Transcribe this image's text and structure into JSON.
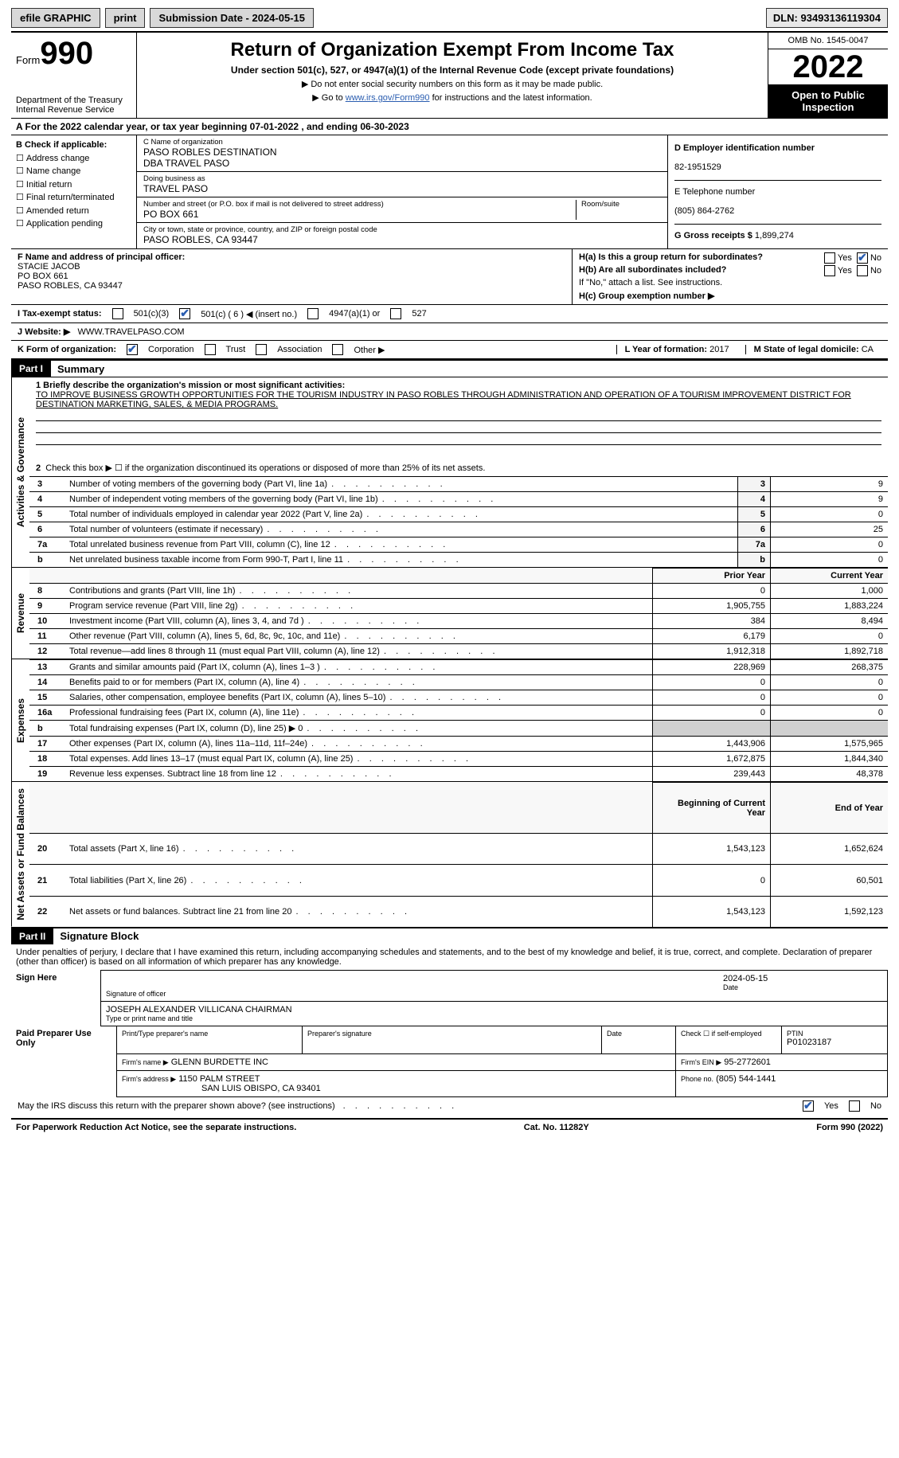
{
  "topbar": {
    "efile": "efile GRAPHIC",
    "print": "print",
    "submission_label": "Submission Date - 2024-05-15",
    "dln": "DLN: 93493136119304"
  },
  "header": {
    "form_label": "Form",
    "form_number": "990",
    "dept": "Department of the Treasury\nInternal Revenue Service",
    "title": "Return of Organization Exempt From Income Tax",
    "sub": "Under section 501(c), 527, or 4947(a)(1) of the Internal Revenue Code (except private foundations)",
    "note1": "▶ Do not enter social security numbers on this form as it may be made public.",
    "note2_pre": "▶ Go to ",
    "note2_link": "www.irs.gov/Form990",
    "note2_post": " for instructions and the latest information.",
    "omb": "OMB No. 1545-0047",
    "year": "2022",
    "open": "Open to Public Inspection"
  },
  "section_a": "A  For the 2022 calendar year, or tax year beginning 07-01-2022    , and ending 06-30-2023",
  "col_b": {
    "title": "B Check if applicable:",
    "items": [
      "Address change",
      "Name change",
      "Initial return",
      "Final return/terminated",
      "Amended return",
      "Application pending"
    ]
  },
  "col_c": {
    "name_label": "C Name of organization",
    "name": "PASO ROBLES DESTINATION\nDBA TRAVEL PASO",
    "dba_label": "Doing business as",
    "dba": "TRAVEL PASO",
    "street_label": "Number and street (or P.O. box if mail is not delivered to street address)",
    "room_label": "Room/suite",
    "street": "PO BOX 661",
    "city_label": "City or town, state or province, country, and ZIP or foreign postal code",
    "city": "PASO ROBLES, CA  93447"
  },
  "col_def": {
    "d_label": "D Employer identification number",
    "d_val": "82-1951529",
    "e_label": "E Telephone number",
    "e_val": "(805) 864-2762",
    "g_label": "G Gross receipts $",
    "g_val": "1,899,274"
  },
  "col_f": {
    "label": "F Name and address of principal officer:",
    "name": "STACIE JACOB",
    "addr1": "PO BOX 661",
    "addr2": "PASO ROBLES, CA  93447"
  },
  "col_h": {
    "ha": "H(a)  Is this a group return for subordinates?",
    "hb": "H(b)  Are all subordinates included?",
    "hb_note": "If \"No,\" attach a list. See instructions.",
    "hc": "H(c)  Group exemption number ▶",
    "yes": "Yes",
    "no": "No"
  },
  "line_i": {
    "label": "I   Tax-exempt status:",
    "opts": [
      "501(c)(3)",
      "501(c) ( 6 ) ◀ (insert no.)",
      "4947(a)(1) or",
      "527"
    ]
  },
  "line_j": {
    "label": "J   Website: ▶",
    "val": "WWW.TRAVELPASO.COM"
  },
  "line_k": {
    "label": "K Form of organization:",
    "opts": [
      "Corporation",
      "Trust",
      "Association",
      "Other ▶"
    ],
    "l_label": "L Year of formation:",
    "l_val": "2017",
    "m_label": "M State of legal domicile:",
    "m_val": "CA"
  },
  "part1": {
    "header": "Part I",
    "title": "Summary",
    "mission_label": "1   Briefly describe the organization's mission or most significant activities:",
    "mission": "TO IMPROVE BUSINESS GROWTH OPPORTUNITIES FOR THE TOURISM INDUSTRY IN PASO ROBLES THROUGH ADMINISTRATION AND OPERATION OF A TOURISM IMPROVEMENT DISTRICT FOR DESTINATION MARKETING, SALES, & MEDIA PROGRAMS.",
    "line2": "Check this box ▶ ☐  if the organization discontinued its operations or disposed of more than 25% of its net assets.",
    "tabs": {
      "activities": "Activities & Governance",
      "revenue": "Revenue",
      "expenses": "Expenses",
      "netassets": "Net Assets or Fund Balances"
    },
    "col_prior": "Prior Year",
    "col_current": "Current Year",
    "col_begin": "Beginning of Current Year",
    "col_end": "End of Year",
    "rows_gov": [
      {
        "n": "3",
        "desc": "Number of voting members of the governing body (Part VI, line 1a)",
        "val": "9"
      },
      {
        "n": "4",
        "desc": "Number of independent voting members of the governing body (Part VI, line 1b)",
        "val": "9"
      },
      {
        "n": "5",
        "desc": "Total number of individuals employed in calendar year 2022 (Part V, line 2a)",
        "val": "0"
      },
      {
        "n": "6",
        "desc": "Total number of volunteers (estimate if necessary)",
        "val": "25"
      },
      {
        "n": "7a",
        "desc": "Total unrelated business revenue from Part VIII, column (C), line 12",
        "val": "0"
      },
      {
        "n": "b",
        "desc": "Net unrelated business taxable income from Form 990-T, Part I, line 11",
        "val": "0"
      }
    ],
    "rows_rev": [
      {
        "n": "8",
        "desc": "Contributions and grants (Part VIII, line 1h)",
        "p": "0",
        "c": "1,000"
      },
      {
        "n": "9",
        "desc": "Program service revenue (Part VIII, line 2g)",
        "p": "1,905,755",
        "c": "1,883,224"
      },
      {
        "n": "10",
        "desc": "Investment income (Part VIII, column (A), lines 3, 4, and 7d )",
        "p": "384",
        "c": "8,494"
      },
      {
        "n": "11",
        "desc": "Other revenue (Part VIII, column (A), lines 5, 6d, 8c, 9c, 10c, and 11e)",
        "p": "6,179",
        "c": "0"
      },
      {
        "n": "12",
        "desc": "Total revenue—add lines 8 through 11 (must equal Part VIII, column (A), line 12)",
        "p": "1,912,318",
        "c": "1,892,718"
      }
    ],
    "rows_exp": [
      {
        "n": "13",
        "desc": "Grants and similar amounts paid (Part IX, column (A), lines 1–3 )",
        "p": "228,969",
        "c": "268,375"
      },
      {
        "n": "14",
        "desc": "Benefits paid to or for members (Part IX, column (A), line 4)",
        "p": "0",
        "c": "0"
      },
      {
        "n": "15",
        "desc": "Salaries, other compensation, employee benefits (Part IX, column (A), lines 5–10)",
        "p": "0",
        "c": "0"
      },
      {
        "n": "16a",
        "desc": "Professional fundraising fees (Part IX, column (A), line 11e)",
        "p": "0",
        "c": "0"
      },
      {
        "n": "b",
        "desc": "Total fundraising expenses (Part IX, column (D), line 25) ▶ 0",
        "p": "",
        "c": "",
        "grey": true
      },
      {
        "n": "17",
        "desc": "Other expenses (Part IX, column (A), lines 11a–11d, 11f–24e)",
        "p": "1,443,906",
        "c": "1,575,965"
      },
      {
        "n": "18",
        "desc": "Total expenses. Add lines 13–17 (must equal Part IX, column (A), line 25)",
        "p": "1,672,875",
        "c": "1,844,340"
      },
      {
        "n": "19",
        "desc": "Revenue less expenses. Subtract line 18 from line 12",
        "p": "239,443",
        "c": "48,378"
      }
    ],
    "rows_net": [
      {
        "n": "20",
        "desc": "Total assets (Part X, line 16)",
        "p": "1,543,123",
        "c": "1,652,624"
      },
      {
        "n": "21",
        "desc": "Total liabilities (Part X, line 26)",
        "p": "0",
        "c": "60,501"
      },
      {
        "n": "22",
        "desc": "Net assets or fund balances. Subtract line 21 from line 20",
        "p": "1,543,123",
        "c": "1,592,123"
      }
    ]
  },
  "part2": {
    "header": "Part II",
    "title": "Signature Block",
    "penalty": "Under penalties of perjury, I declare that I have examined this return, including accompanying schedules and statements, and to the best of my knowledge and belief, it is true, correct, and complete. Declaration of preparer (other than officer) is based on all information of which preparer has any knowledge.",
    "sign_here": "Sign Here",
    "sig_officer": "Signature of officer",
    "sig_date": "2024-05-15",
    "date_label": "Date",
    "name_title": "JOSEPH ALEXANDER VILLICANA  CHAIRMAN",
    "name_title_label": "Type or print name and title",
    "paid": "Paid Preparer Use Only",
    "prep_name_label": "Print/Type preparer's name",
    "prep_sig_label": "Preparer's signature",
    "prep_date_label": "Date",
    "check_self": "Check ☐ if self-employed",
    "ptin_label": "PTIN",
    "ptin": "P01023187",
    "firm_name_label": "Firm's name    ▶",
    "firm_name": "GLENN BURDETTE INC",
    "firm_ein_label": "Firm's EIN ▶",
    "firm_ein": "95-2772601",
    "firm_addr_label": "Firm's address ▶",
    "firm_addr1": "1150 PALM STREET",
    "firm_addr2": "SAN LUIS OBISPO, CA  93401",
    "phone_label": "Phone no.",
    "phone": "(805) 544-1441",
    "discuss": "May the IRS discuss this return with the preparer shown above? (see instructions)",
    "yes": "Yes",
    "no": "No"
  },
  "footer": {
    "left": "For Paperwork Reduction Act Notice, see the separate instructions.",
    "center": "Cat. No. 11282Y",
    "right": "Form 990 (2022)"
  }
}
